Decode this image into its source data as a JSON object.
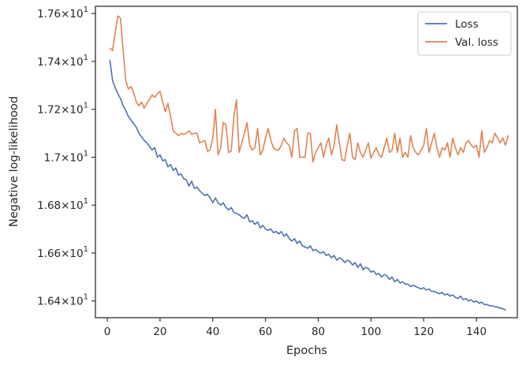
{
  "chart_data": {
    "type": "line",
    "xlabel": "Epochs",
    "ylabel": "Negative log-likelihood",
    "xlim": [
      -4.5,
      155.5
    ],
    "ylim": [
      16.33,
      17.63
    ],
    "x_ticks": [
      0,
      20,
      40,
      60,
      80,
      100,
      120,
      140
    ],
    "x_tick_labels": [
      "0",
      "20",
      "40",
      "60",
      "80",
      "100",
      "120",
      "140"
    ],
    "y_ticks": [
      16.4,
      16.6,
      16.8,
      17.0,
      17.2,
      17.4,
      17.6
    ],
    "y_tick_labels": [
      {
        "mant": "1.64",
        "base": "10",
        "exp": "1"
      },
      {
        "mant": "1.66",
        "base": "10",
        "exp": "1"
      },
      {
        "mant": "1.68",
        "base": "10",
        "exp": "1"
      },
      {
        "mant": "1.7",
        "base": "10",
        "exp": "1"
      },
      {
        "mant": "1.72",
        "base": "10",
        "exp": "1"
      },
      {
        "mant": "1.74",
        "base": "10",
        "exp": "1"
      },
      {
        "mant": "1.76",
        "base": "10",
        "exp": "1"
      }
    ],
    "y_times": "×",
    "grid": false,
    "legend_position": "top-right",
    "x_start": 1,
    "series": [
      {
        "name": "Loss",
        "color": "#4c72b0",
        "values": [
          17.405,
          17.32,
          17.29,
          17.265,
          17.245,
          17.215,
          17.195,
          17.17,
          17.155,
          17.14,
          17.125,
          17.1,
          17.085,
          17.07,
          17.06,
          17.045,
          17.03,
          17.04,
          17.0,
          17.01,
          16.985,
          16.99,
          16.96,
          16.97,
          16.945,
          16.955,
          16.925,
          16.93,
          16.91,
          16.905,
          16.88,
          16.9,
          16.87,
          16.875,
          16.86,
          16.85,
          16.84,
          16.845,
          16.83,
          16.81,
          16.83,
          16.81,
          16.8,
          16.81,
          16.79,
          16.78,
          16.79,
          16.77,
          16.765,
          16.76,
          16.75,
          16.745,
          16.76,
          16.73,
          16.735,
          16.72,
          16.73,
          16.705,
          16.715,
          16.7,
          16.695,
          16.7,
          16.685,
          16.69,
          16.68,
          16.69,
          16.67,
          16.68,
          16.66,
          16.65,
          16.66,
          16.64,
          16.65,
          16.63,
          16.625,
          16.62,
          16.63,
          16.61,
          16.615,
          16.605,
          16.6,
          16.605,
          16.59,
          16.595,
          16.58,
          16.59,
          16.57,
          16.58,
          16.575,
          16.56,
          16.57,
          16.565,
          16.55,
          16.56,
          16.54,
          16.555,
          16.53,
          16.54,
          16.535,
          16.52,
          16.525,
          16.51,
          16.515,
          16.5,
          16.51,
          16.505,
          16.49,
          16.5,
          16.48,
          16.49,
          16.475,
          16.48,
          16.47,
          16.47,
          16.46,
          16.465,
          16.46,
          16.455,
          16.45,
          16.455,
          16.445,
          16.45,
          16.44,
          16.44,
          16.435,
          16.43,
          16.435,
          16.425,
          16.43,
          16.42,
          16.425,
          16.415,
          16.41,
          16.42,
          16.405,
          16.41,
          16.4,
          16.405,
          16.395,
          16.4,
          16.39,
          16.395,
          16.385,
          16.385,
          16.38,
          16.38,
          16.375,
          16.375,
          16.37,
          16.368,
          16.362
        ]
      },
      {
        "name": "Val. loss",
        "color": "#dd8452",
        "values": [
          17.455,
          17.445,
          17.52,
          17.59,
          17.58,
          17.45,
          17.32,
          17.285,
          17.295,
          17.27,
          17.23,
          17.215,
          17.23,
          17.205,
          17.225,
          17.24,
          17.26,
          17.25,
          17.265,
          17.275,
          17.23,
          17.19,
          17.225,
          17.17,
          17.11,
          17.1,
          17.09,
          17.1,
          17.095,
          17.1,
          17.11,
          17.095,
          17.1,
          17.1,
          17.06,
          17.065,
          17.07,
          17.025,
          17.03,
          17.08,
          17.2,
          17.01,
          17.04,
          17.145,
          17.135,
          17.02,
          17.025,
          17.17,
          17.24,
          17.02,
          17.06,
          17.1,
          17.145,
          17.05,
          17.03,
          17.04,
          17.12,
          17.01,
          17.03,
          17.08,
          17.12,
          17.07,
          17.04,
          17.03,
          17.03,
          17.05,
          17.08,
          17.06,
          17.05,
          17.0,
          17.11,
          17.12,
          17.0,
          17.0,
          17.0,
          17.1,
          17.1,
          16.98,
          17.02,
          17.04,
          17.06,
          17.0,
          17.05,
          17.08,
          17.01,
          17.05,
          17.135,
          17.06,
          16.99,
          16.985,
          17.05,
          17.1,
          17.0,
          16.99,
          17.06,
          17.02,
          17.0,
          17.03,
          17.06,
          16.995,
          17.02,
          17.04,
          17.01,
          17.0,
          17.04,
          17.08,
          17.02,
          17.03,
          17.1,
          17.02,
          17.08,
          17.0,
          17.02,
          17.0,
          17.09,
          17.04,
          17.02,
          17.01,
          17.03,
          17.05,
          17.12,
          17.02,
          17.06,
          17.1,
          17.04,
          17.0,
          17.04,
          17.03,
          17.06,
          17.0,
          17.08,
          17.04,
          17.01,
          17.04,
          17.02,
          17.06,
          17.07,
          17.05,
          17.04,
          17.05,
          17.0,
          17.11,
          17.02,
          17.04,
          17.07,
          17.06,
          17.1,
          17.08,
          17.06,
          17.08,
          17.05,
          17.09
        ]
      }
    ]
  }
}
